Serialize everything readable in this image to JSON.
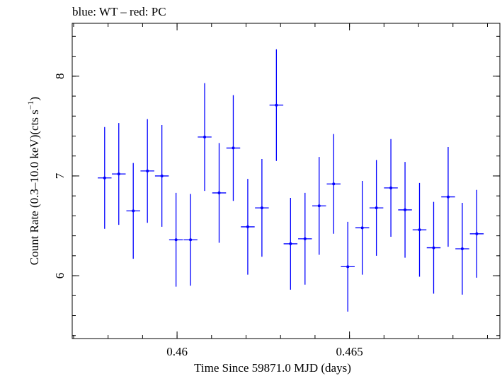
{
  "chart_data": {
    "type": "scatter",
    "title": "blue: WT – red: PC",
    "xlabel": "Time Since 59871.0 MJD (days)",
    "ylabel": "Count Rate (0.3–10.0 keV)(cts s",
    "ylabel_sup": "−1",
    "ylabel_close": ")",
    "xlim": [
      0.45696,
      0.46936
    ],
    "ylim": [
      5.37,
      8.53
    ],
    "x_ticks": [
      {
        "value": 0.46,
        "label": "0.46"
      },
      {
        "value": 0.465,
        "label": "0.465"
      }
    ],
    "y_ticks": [
      {
        "value": 6,
        "label": "6"
      },
      {
        "value": 7,
        "label": "7"
      },
      {
        "value": 8,
        "label": "8"
      }
    ],
    "x_minor_step": 0.001,
    "y_minor_step": 0.2,
    "grid": false,
    "legend": "none",
    "series": [
      {
        "color": "#0000ff",
        "xerr": 0.0002,
        "points": [
          {
            "x": 0.4579,
            "y": 6.98,
            "yerr": 0.51
          },
          {
            "x": 0.45831,
            "y": 7.02,
            "yerr": 0.51
          },
          {
            "x": 0.45873,
            "y": 6.65,
            "yerr": 0.48
          },
          {
            "x": 0.45914,
            "y": 7.05,
            "yerr": 0.52
          },
          {
            "x": 0.45956,
            "y": 7.0,
            "yerr": 0.51
          },
          {
            "x": 0.45997,
            "y": 6.36,
            "yerr": 0.47
          },
          {
            "x": 0.46039,
            "y": 6.36,
            "yerr": 0.46
          },
          {
            "x": 0.4608,
            "y": 7.39,
            "yerr": 0.54
          },
          {
            "x": 0.46122,
            "y": 6.83,
            "yerr": 0.5
          },
          {
            "x": 0.46163,
            "y": 7.28,
            "yerr": 0.53
          },
          {
            "x": 0.46205,
            "y": 6.49,
            "yerr": 0.48
          },
          {
            "x": 0.46246,
            "y": 6.68,
            "yerr": 0.49
          },
          {
            "x": 0.46288,
            "y": 7.71,
            "yerr": 0.56
          },
          {
            "x": 0.46329,
            "y": 6.32,
            "yerr": 0.46
          },
          {
            "x": 0.46371,
            "y": 6.37,
            "yerr": 0.46
          },
          {
            "x": 0.46412,
            "y": 6.7,
            "yerr": 0.49
          },
          {
            "x": 0.46454,
            "y": 6.92,
            "yerr": 0.5
          },
          {
            "x": 0.46495,
            "y": 6.09,
            "yerr": 0.45
          },
          {
            "x": 0.46537,
            "y": 6.48,
            "yerr": 0.47
          },
          {
            "x": 0.46578,
            "y": 6.68,
            "yerr": 0.48
          },
          {
            "x": 0.4662,
            "y": 6.88,
            "yerr": 0.49
          },
          {
            "x": 0.46661,
            "y": 6.66,
            "yerr": 0.48
          },
          {
            "x": 0.46703,
            "y": 6.46,
            "yerr": 0.47
          },
          {
            "x": 0.46744,
            "y": 6.28,
            "yerr": 0.46
          },
          {
            "x": 0.46786,
            "y": 6.79,
            "yerr": 0.5
          },
          {
            "x": 0.46827,
            "y": 6.27,
            "yerr": 0.46
          },
          {
            "x": 0.46869,
            "y": 6.42,
            "yerr": 0.44
          }
        ]
      }
    ]
  }
}
